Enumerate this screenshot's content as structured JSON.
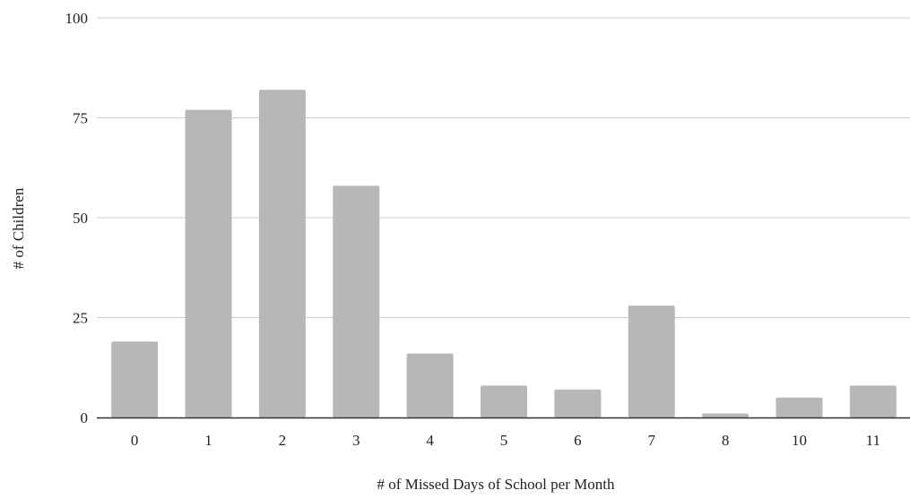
{
  "chart_data": {
    "type": "bar",
    "categories": [
      "0",
      "1",
      "2",
      "3",
      "4",
      "5",
      "6",
      "7",
      "8",
      "10",
      "11"
    ],
    "values": [
      19,
      77,
      82,
      58,
      16,
      8,
      7,
      28,
      1,
      5,
      8
    ],
    "title": "",
    "xlabel": "# of Missed Days of School per Month",
    "ylabel": "# of Children",
    "ylim": [
      0,
      100
    ],
    "yticks": [
      0,
      25,
      50,
      75,
      100
    ],
    "grid": true,
    "colors": {
      "bar": "#b7b7b7",
      "gridline": "#cccccc",
      "baseline": "#333333"
    }
  }
}
